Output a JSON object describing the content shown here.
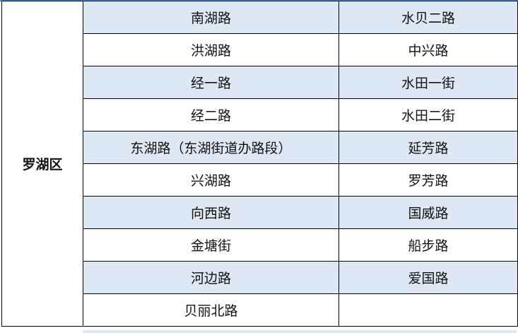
{
  "district": "罗湖区",
  "rows": [
    {
      "left": "南湖路",
      "right": "水贝二路",
      "shaded": true
    },
    {
      "left": "洪湖路",
      "right": "中兴路",
      "shaded": false
    },
    {
      "left": "经一路",
      "right": "水田一街",
      "shaded": true
    },
    {
      "left": "经二路",
      "right": "水田二街",
      "shaded": false
    },
    {
      "left": "东湖路（东湖街道办路段）",
      "right": "延芳路",
      "shaded": true
    },
    {
      "left": "兴湖路",
      "right": "罗芳路",
      "shaded": false
    },
    {
      "left": "向西路",
      "right": "国威路",
      "shaded": true
    },
    {
      "left": "金塘街",
      "right": "船步路",
      "shaded": false
    },
    {
      "left": "河边路",
      "right": "爱国路",
      "shaded": true
    },
    {
      "left": "贝丽北路",
      "right": "",
      "shaded": false
    }
  ],
  "colors": {
    "shade": "#dee8f4",
    "top_line": "#4f86c6"
  }
}
